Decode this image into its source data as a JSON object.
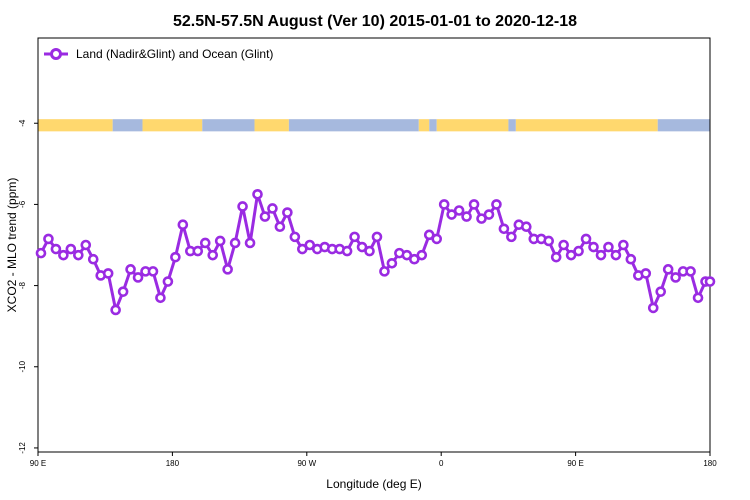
{
  "chart_data": {
    "type": "line",
    "title": "52.5N-57.5N August (Ver 10)   2015-01-01 to 2020-12-18",
    "xlabel": "Longitude (deg E)",
    "ylabel": "XCO2 - MLO trend (ppm)",
    "xlim": [
      90,
      540
    ],
    "ylim": [
      -12.1,
      -1.9
    ],
    "x_ticks": [
      {
        "value": 90,
        "label": "90 E"
      },
      {
        "value": 180,
        "label": "180"
      },
      {
        "value": 270,
        "label": "90 W"
      },
      {
        "value": 360,
        "label": "0"
      },
      {
        "value": 450,
        "label": "90 E"
      },
      {
        "value": 540,
        "label": "180"
      }
    ],
    "y_ticks": [
      -12,
      -10,
      -8,
      -6,
      -4
    ],
    "legend": {
      "position": "top-left"
    },
    "land_ocean_bar": {
      "y_range": [
        -4.2,
        -3.9
      ],
      "land_color": "#ffd86e",
      "ocean_color": "#a6b9de",
      "segments": [
        {
          "type": "land",
          "x": [
            90,
            140
          ]
        },
        {
          "type": "ocean",
          "x": [
            140,
            160
          ]
        },
        {
          "type": "land",
          "x": [
            160,
            200
          ]
        },
        {
          "type": "ocean",
          "x": [
            200,
            235
          ]
        },
        {
          "type": "land",
          "x": [
            235,
            258
          ]
        },
        {
          "type": "ocean",
          "x": [
            258,
            345
          ]
        },
        {
          "type": "land",
          "x": [
            345,
            352
          ]
        },
        {
          "type": "ocean",
          "x": [
            352,
            357
          ]
        },
        {
          "type": "land",
          "x": [
            357,
            405
          ]
        },
        {
          "type": "ocean",
          "x": [
            405,
            410
          ]
        },
        {
          "type": "land",
          "x": [
            410,
            505
          ]
        },
        {
          "type": "ocean",
          "x": [
            505,
            540
          ]
        }
      ]
    },
    "series": [
      {
        "name": "Land (Nadir&Glint) and Ocean (Glint)",
        "color": "#9a2be2",
        "x": [
          92,
          97,
          102,
          107,
          112,
          117,
          122,
          127,
          132,
          137,
          142,
          147,
          152,
          157,
          162,
          167,
          172,
          177,
          182,
          187,
          192,
          197,
          202,
          207,
          212,
          217,
          222,
          227,
          232,
          237,
          242,
          247,
          252,
          257,
          262,
          267,
          272,
          277,
          282,
          287,
          292,
          297,
          302,
          307,
          312,
          317,
          322,
          327,
          332,
          337,
          342,
          347,
          352,
          357,
          362,
          367,
          372,
          377,
          382,
          387,
          392,
          397,
          402,
          407,
          412,
          417,
          422,
          427,
          432,
          437,
          442,
          447,
          452,
          457,
          462,
          467,
          472,
          477,
          482,
          487,
          492,
          497,
          502,
          507,
          512,
          517,
          522,
          527,
          532,
          537,
          540
        ],
        "values": [
          -7.2,
          -6.85,
          -7.1,
          -7.25,
          -7.1,
          -7.25,
          -7.0,
          -7.35,
          -7.75,
          -7.7,
          -8.6,
          -8.15,
          -7.6,
          -7.8,
          -7.65,
          -7.65,
          -8.3,
          -7.9,
          -7.3,
          -6.5,
          -7.15,
          -7.15,
          -6.95,
          -7.25,
          -6.9,
          -7.6,
          -6.95,
          -6.05,
          -6.95,
          -5.75,
          -6.3,
          -6.1,
          -6.55,
          -6.2,
          -6.8,
          -7.1,
          -7.0,
          -7.1,
          -7.05,
          -7.1,
          -7.1,
          -7.15,
          -6.8,
          -7.05,
          -7.15,
          -6.8,
          -7.65,
          -7.45,
          -7.2,
          -7.25,
          -7.35,
          -7.25,
          -6.75,
          -6.85,
          -6.0,
          -6.25,
          -6.15,
          -6.3,
          -6.0,
          -6.35,
          -6.25,
          -6.0,
          -6.6,
          -6.8,
          -6.5,
          -6.55,
          -6.85,
          -6.85,
          -6.9,
          -7.3,
          -7.0,
          -7.25,
          -7.15,
          -6.85,
          -7.05,
          -7.25,
          -7.05,
          -7.25,
          -7.0,
          -7.35,
          -7.75,
          -7.7,
          -8.55,
          -8.15,
          -7.6,
          -7.8,
          -7.65,
          -7.65,
          -8.3,
          -7.9,
          -7.9
        ]
      }
    ]
  }
}
